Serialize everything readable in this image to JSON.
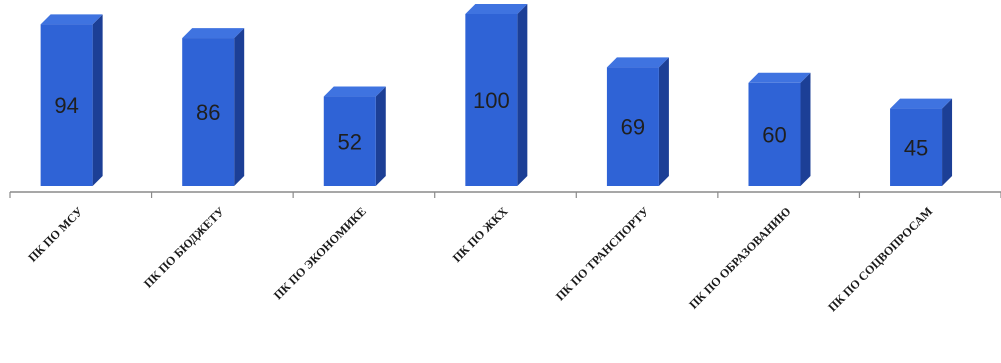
{
  "chart_data": {
    "type": "bar",
    "categories": [
      "ПК ПО МСУ",
      "ПК ПО БЮДЖЕТУ",
      "ПК ПО ЭКОНОМИКЕ",
      "ПК ПО ЖКХ",
      "ПК ПО ТРАНСПОРТУ",
      "ПК ПО ОБРАЗОВАНИЮ",
      "ПК ПО СОЦВОПРОСАМ"
    ],
    "series": [
      {
        "values": [
          94,
          86,
          52,
          100,
          69,
          60,
          45
        ]
      }
    ],
    "ylim": [
      0,
      100
    ],
    "grid": false,
    "legend": "none",
    "data_labels": true,
    "style": "3d-column"
  },
  "colors": {
    "bar_front": "#2f63d6",
    "bar_side": "#1c3f96",
    "bar_top": "#3f73e0",
    "axis": "#8a8a8a"
  }
}
